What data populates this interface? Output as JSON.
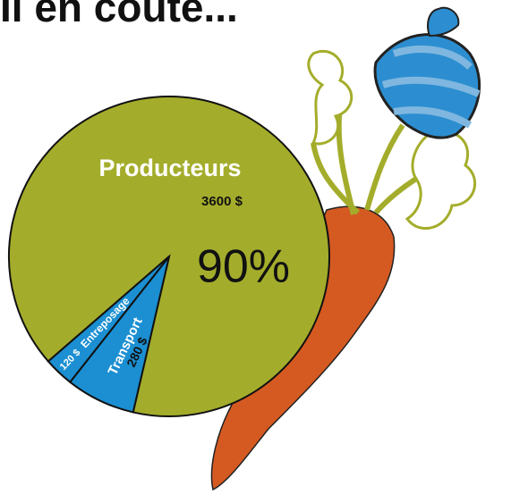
{
  "chart_data": {
    "type": "pie",
    "title": "Il en coûte...",
    "categories": [
      "Producteurs",
      "Transport",
      "Entreposage"
    ],
    "values": [
      3600,
      280,
      120
    ],
    "value_labels": [
      "3600 $",
      "280 $",
      "120 $"
    ],
    "colors": [
      "#a4ad2b",
      "#1b8fd2",
      "#1b8fd2"
    ],
    "annotations": [
      {
        "text": "90%"
      }
    ]
  }
}
